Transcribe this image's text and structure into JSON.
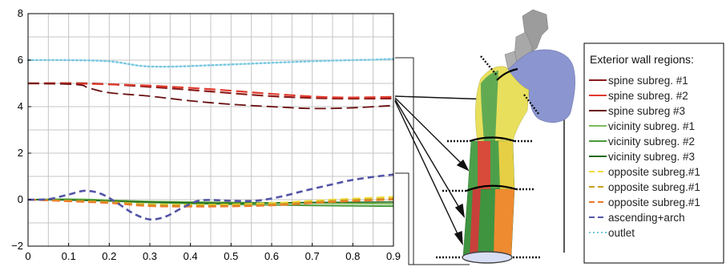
{
  "chart_data": {
    "type": "line",
    "title": "",
    "xlabel": "",
    "ylabel": "",
    "xlim": [
      0,
      0.9
    ],
    "ylim": [
      -2,
      8
    ],
    "grid": true,
    "x_ticks": [
      "0",
      "0.1",
      "0.2",
      "0.3",
      "0.4",
      "0.5",
      "0.6",
      "0.7",
      "0.8",
      "0.9"
    ],
    "y_ticks": [
      "−2",
      "0",
      "2",
      "4",
      "6",
      "8"
    ],
    "legend": {
      "title": "Exterior wall regions:",
      "placement": "right",
      "entries": [
        {
          "label": "spine subreg. #1",
          "color": "#8b1a1a",
          "style": "solid"
        },
        {
          "label": "spine subreg. #2",
          "color": "#e03a2c",
          "style": "solid"
        },
        {
          "label": "spine subreg #3",
          "color": "#6a0f0f",
          "style": "solid"
        },
        {
          "label": "vicinity subreg. #1",
          "color": "#7dbb5a",
          "style": "solid"
        },
        {
          "label": "vicinity subreg. #2",
          "color": "#4a9a3a",
          "style": "solid"
        },
        {
          "label": "vicinity subreg. #3",
          "color": "#1f6b20",
          "style": "solid"
        },
        {
          "label": "opposite subreg.#1",
          "color": "#f2dc3a",
          "style": "dashed"
        },
        {
          "label": "opposite subreg.#1",
          "color": "#c8a020",
          "style": "dashed"
        },
        {
          "label": "opposite subreg.#1",
          "color": "#ee7a2a",
          "style": "dashed"
        },
        {
          "label": "ascending+arch",
          "color": "#5454a8",
          "style": "dashed"
        },
        {
          "label": "outlet",
          "color": "#78c8e0",
          "style": "dotted"
        }
      ]
    },
    "series": [
      {
        "name": "spine subreg. #1",
        "color": "#8b1a1a",
        "dash": "14 6",
        "width": 2.2,
        "x": [
          0,
          0.15,
          0.3,
          0.45,
          0.6,
          0.75,
          0.9
        ],
        "y": [
          5.0,
          5.0,
          4.85,
          4.65,
          4.45,
          4.35,
          4.35
        ]
      },
      {
        "name": "spine subreg. #2",
        "color": "#e03a2c",
        "dash": "14 6",
        "width": 2.2,
        "x": [
          0,
          0.15,
          0.3,
          0.45,
          0.6,
          0.75,
          0.9
        ],
        "y": [
          5.0,
          4.98,
          4.9,
          4.75,
          4.55,
          4.4,
          4.42
        ]
      },
      {
        "name": "spine subreg #3",
        "color": "#6a0f0f",
        "dash": "14 6",
        "width": 1.8,
        "x": [
          0,
          0.12,
          0.15,
          0.2,
          0.3,
          0.4,
          0.5,
          0.6,
          0.7,
          0.8,
          0.9
        ],
        "y": [
          5.0,
          4.95,
          4.8,
          4.6,
          4.45,
          4.25,
          4.1,
          4.0,
          3.92,
          3.95,
          4.05
        ]
      },
      {
        "name": "vicinity subreg. #1",
        "color": "#7dbb5a",
        "dash": "",
        "width": 2,
        "x": [
          0,
          0.1,
          0.2,
          0.3,
          0.5,
          0.7,
          0.9
        ],
        "y": [
          0.0,
          0.02,
          -0.02,
          -0.08,
          -0.12,
          -0.15,
          -0.18
        ]
      },
      {
        "name": "vicinity subreg. #2",
        "color": "#4a9a3a",
        "dash": "",
        "width": 2,
        "x": [
          0,
          0.1,
          0.2,
          0.3,
          0.5,
          0.7,
          0.9
        ],
        "y": [
          0.0,
          0.0,
          -0.05,
          -0.12,
          -0.2,
          -0.25,
          -0.28
        ]
      },
      {
        "name": "vicinity subreg. #3",
        "color": "#1f6b20",
        "dash": "",
        "width": 1.6,
        "x": [
          0,
          0.1,
          0.2,
          0.3,
          0.5,
          0.7,
          0.9
        ],
        "y": [
          0.0,
          -0.02,
          -0.06,
          -0.1,
          -0.15,
          -0.12,
          -0.1
        ]
      },
      {
        "name": "opposite subreg.#1",
        "color": "#f2dc3a",
        "dash": "10 5",
        "width": 2.2,
        "x": [
          0,
          0.2,
          0.3,
          0.45,
          0.6,
          0.75,
          0.9
        ],
        "y": [
          0.0,
          -0.1,
          -0.2,
          -0.22,
          -0.15,
          0.0,
          0.12
        ]
      },
      {
        "name": "opposite subreg.#1",
        "color": "#c8a020",
        "dash": "10 5",
        "width": 2,
        "x": [
          0,
          0.2,
          0.3,
          0.45,
          0.6,
          0.75,
          0.9
        ],
        "y": [
          0.0,
          -0.1,
          -0.22,
          -0.25,
          -0.2,
          -0.05,
          0.05
        ]
      },
      {
        "name": "opposite subreg.#1",
        "color": "#ee7a2a",
        "dash": "10 5",
        "width": 2,
        "x": [
          0,
          0.2,
          0.3,
          0.45,
          0.6,
          0.75,
          0.9
        ],
        "y": [
          0.0,
          -0.15,
          -0.28,
          -0.3,
          -0.25,
          -0.1,
          0.0
        ]
      },
      {
        "name": "ascending+arch",
        "color": "#5454a8",
        "dash": "8 5",
        "width": 2.6,
        "x": [
          0,
          0.05,
          0.1,
          0.14,
          0.18,
          0.22,
          0.26,
          0.3,
          0.34,
          0.38,
          0.42,
          0.46,
          0.5,
          0.56,
          0.62,
          0.68,
          0.74,
          0.8,
          0.86,
          0.9
        ],
        "y": [
          0.0,
          0.02,
          0.22,
          0.38,
          0.25,
          -0.15,
          -0.6,
          -0.85,
          -0.72,
          -0.35,
          -0.05,
          -0.02,
          -0.05,
          -0.05,
          0.12,
          0.38,
          0.62,
          0.85,
          1.0,
          1.08
        ]
      },
      {
        "name": "outlet",
        "color": "#78c8e0",
        "dash": "2 3",
        "width": 2.4,
        "x": [
          0,
          0.1,
          0.2,
          0.28,
          0.35,
          0.45,
          0.55,
          0.65,
          0.75,
          0.85,
          0.9
        ],
        "y": [
          6.0,
          6.0,
          5.95,
          5.75,
          5.72,
          5.78,
          5.85,
          5.92,
          5.98,
          6.02,
          6.05
        ]
      }
    ]
  }
}
